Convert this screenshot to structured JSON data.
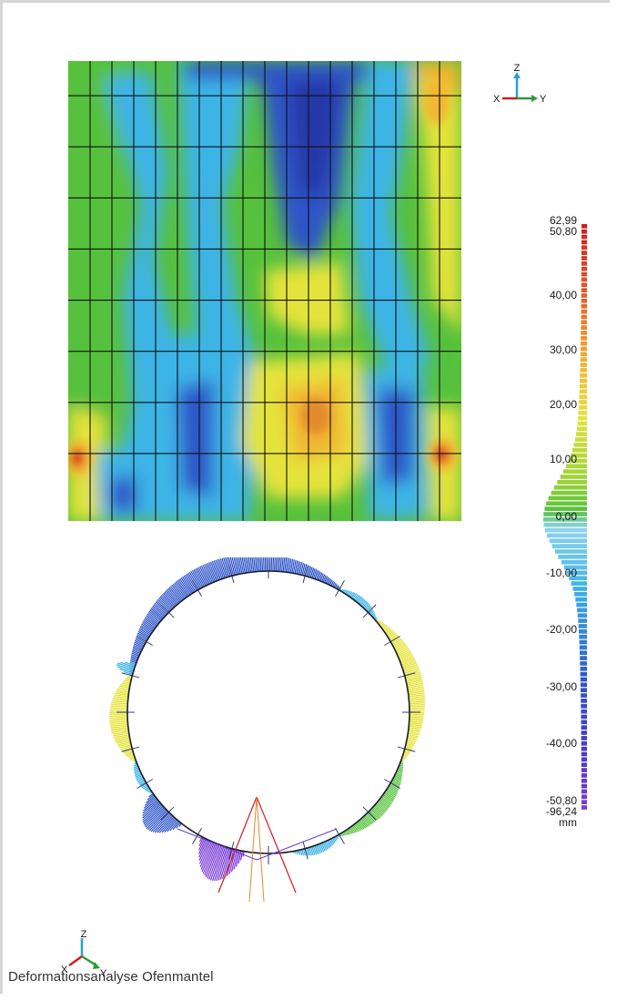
{
  "figure": {
    "caption": "Deformationsanalyse Ofenmantel"
  },
  "axes_triad_top": {
    "up": "Z",
    "left": "X",
    "right": "Y",
    "icon": "axis-triad-icon"
  },
  "axes_triad_bottom": {
    "up": "Z",
    "left": "X",
    "right": "Y",
    "icon": "axis-triad-icon"
  },
  "scale": {
    "unit": "mm",
    "labels": [
      "62,99",
      "50,80",
      "40,00",
      "30,00",
      "20,00",
      "10,00",
      "0,00",
      "-10,00",
      "-20,00",
      "-30,00",
      "-40,00",
      "-50,80",
      "-96,24"
    ],
    "colors": {
      "max": "#d7191c",
      "high": "#f2b632",
      "mid_high": "#e4e33a",
      "zero": "#56c13c",
      "low": "#3cb4e6",
      "mid_low": "#2e55c8",
      "min": "#7a3ad6"
    }
  },
  "heatmap": {
    "grid_columns": 18,
    "grid_rows": 9
  }
}
